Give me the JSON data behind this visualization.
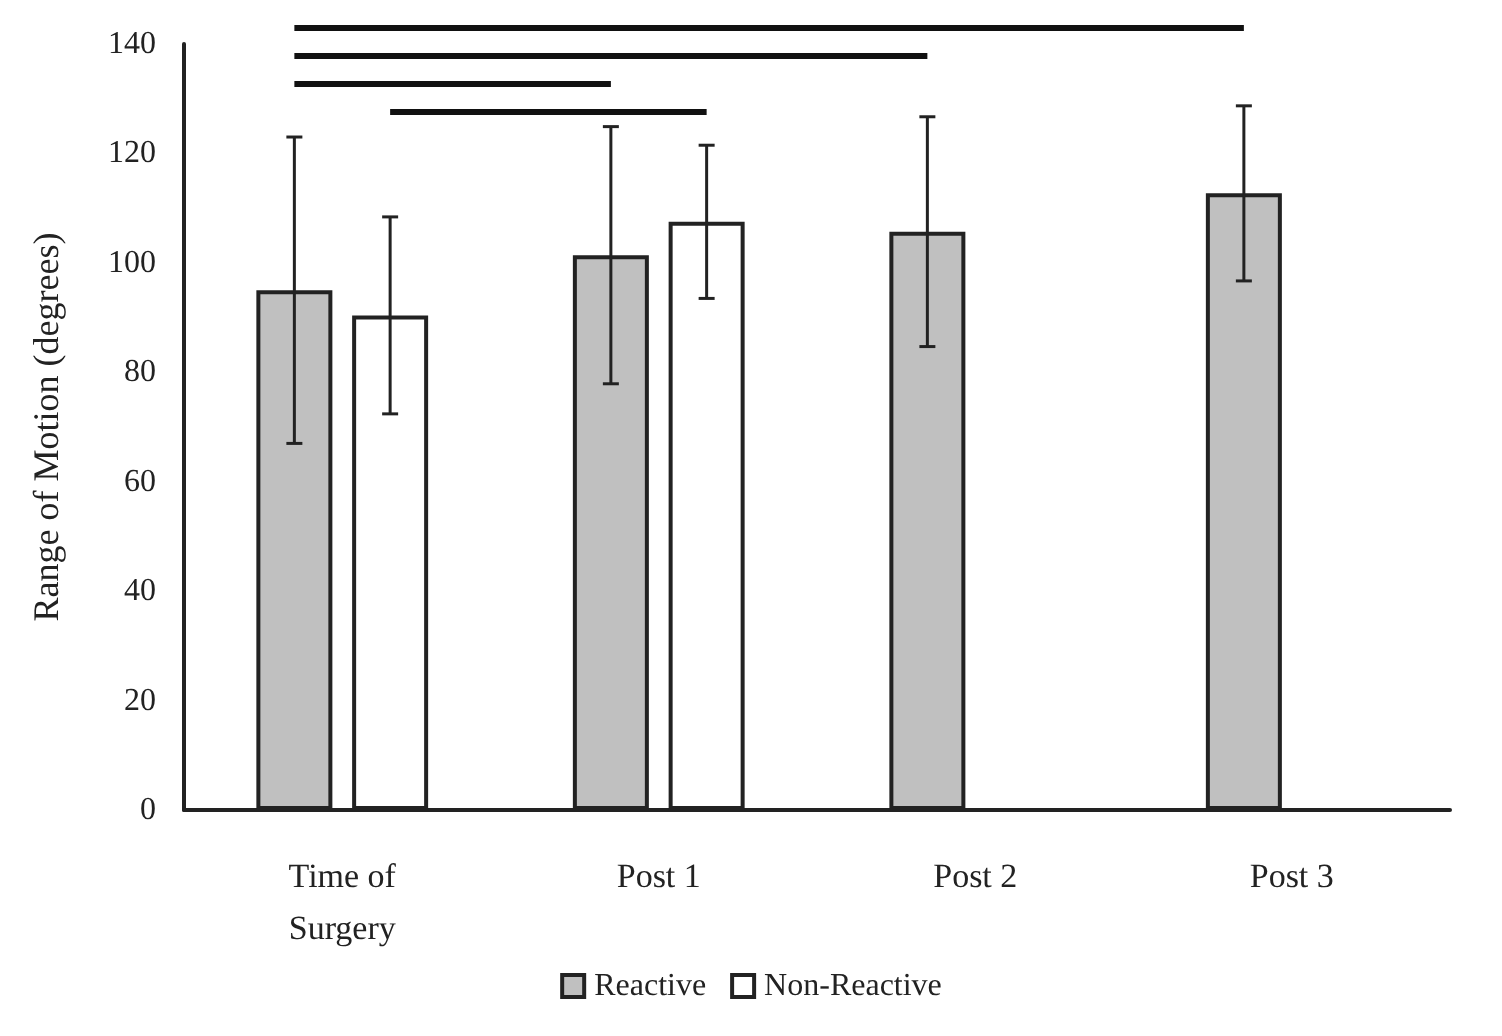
{
  "chart_data": {
    "type": "bar",
    "ylabel": "Range of Motion (degrees)",
    "categories": [
      "Time of\nSurgery",
      "Post 1",
      "Post 2",
      "Post 3"
    ],
    "series": [
      {
        "name": "Reactive",
        "color": "#c0c0c0",
        "values": [
          95,
          101.4,
          105.7,
          112.7
        ],
        "errors": [
          28,
          23.5,
          21,
          16
        ]
      },
      {
        "name": "Non-Reactive",
        "color": "#ffffff",
        "values": [
          90.4,
          107.5,
          null,
          null
        ],
        "errors": [
          18,
          14,
          null,
          null
        ]
      }
    ],
    "ylim": [
      0,
      140
    ],
    "yticks": [
      0,
      20,
      40,
      60,
      80,
      100,
      120,
      140
    ],
    "grid": false,
    "legend": "bottom"
  }
}
